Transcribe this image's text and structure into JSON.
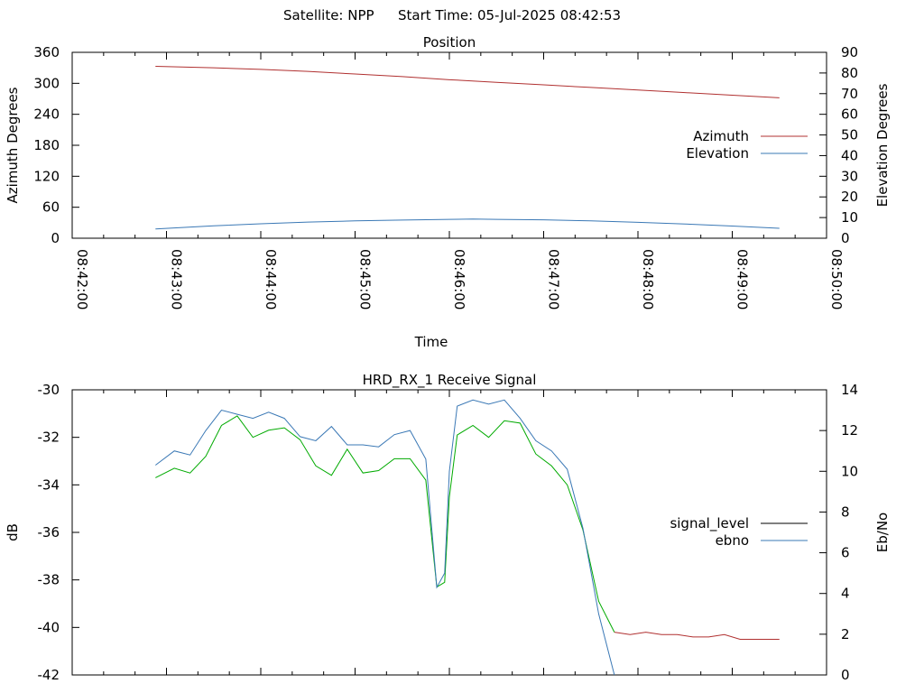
{
  "header": {
    "satellite_text": "Satellite: NPP",
    "start_time_text": "Start Time: 05-Jul-2025 08:42:53"
  },
  "chart_data": [
    {
      "type": "line",
      "title": "Position",
      "xlabel": "Time",
      "ylabel": "Azimuth Degrees",
      "y2label": "Elevation Degrees",
      "x_ticks": [
        "08:42:00",
        "08:43:00",
        "08:44:00",
        "08:45:00",
        "08:46:00",
        "08:47:00",
        "08:48:00",
        "08:49:00",
        "08:50:00"
      ],
      "xlim": [
        "08:42:00",
        "08:50:00"
      ],
      "ylim": [
        0,
        360
      ],
      "y_ticks": [
        "0",
        "60",
        "120",
        "180",
        "240",
        "300",
        "360"
      ],
      "y2lim": [
        0,
        90
      ],
      "y2_ticks": [
        "0",
        "10",
        "20",
        "30",
        "40",
        "50",
        "60",
        "70",
        "80",
        "90"
      ],
      "legend_position": "right",
      "series": [
        {
          "name": "Azimuth",
          "axis": "y",
          "color": "#b03030",
          "x": [
            "08:42:53",
            "08:43:30",
            "08:44:00",
            "08:44:30",
            "08:45:00",
            "08:45:30",
            "08:46:00",
            "08:46:30",
            "08:47:00",
            "08:47:30",
            "08:48:00",
            "08:48:30",
            "08:49:00",
            "08:49:30"
          ],
          "values": [
            333,
            330,
            327,
            323,
            318,
            313,
            307,
            302,
            297,
            292,
            287,
            282,
            277,
            272
          ]
        },
        {
          "name": "Elevation",
          "axis": "y2",
          "color": "#3a78b5",
          "x": [
            "08:42:53",
            "08:43:30",
            "08:44:00",
            "08:44:30",
            "08:45:00",
            "08:45:30",
            "08:46:00",
            "08:46:15",
            "08:46:30",
            "08:47:00",
            "08:47:30",
            "08:48:00",
            "08:48:30",
            "08:49:00",
            "08:49:30"
          ],
          "values": [
            4.5,
            6,
            7,
            7.8,
            8.4,
            8.8,
            9.1,
            9.3,
            9.1,
            8.9,
            8.4,
            7.7,
            6.9,
            5.9,
            4.8
          ]
        }
      ]
    },
    {
      "type": "line",
      "title": "HRD_RX_1 Receive Signal",
      "xlabel": "",
      "ylabel": "dB",
      "y2label": "Eb/No",
      "xlim": [
        "08:42:00",
        "08:50:00"
      ],
      "ylim": [
        -42,
        -30
      ],
      "y_ticks": [
        "-42",
        "-40",
        "-38",
        "-36",
        "-34",
        "-32",
        "-30"
      ],
      "y2lim": [
        0,
        14
      ],
      "y2_ticks": [
        "0",
        "2",
        "4",
        "6",
        "8",
        "10",
        "12",
        "14"
      ],
      "legend_position": "right",
      "series": [
        {
          "name": "signal_level",
          "axis": "y",
          "color": "#00aa00",
          "tail_color": "#b03030",
          "x": [
            "08:42:53",
            "08:43:05",
            "08:43:15",
            "08:43:25",
            "08:43:35",
            "08:43:45",
            "08:43:55",
            "08:44:05",
            "08:44:15",
            "08:44:25",
            "08:44:35",
            "08:44:45",
            "08:44:55",
            "08:45:05",
            "08:45:15",
            "08:45:25",
            "08:45:35",
            "08:45:45",
            "08:45:52",
            "08:45:57",
            "08:46:00",
            "08:46:05",
            "08:46:15",
            "08:46:25",
            "08:46:35",
            "08:46:45",
            "08:46:55",
            "08:47:05",
            "08:47:15",
            "08:47:25",
            "08:47:35",
            "08:47:45",
            "08:47:55",
            "08:48:05",
            "08:48:15",
            "08:48:25",
            "08:48:35",
            "08:48:45",
            "08:48:55",
            "08:49:05",
            "08:49:15",
            "08:49:30"
          ],
          "values": [
            -33.7,
            -33.3,
            -33.5,
            -32.8,
            -31.5,
            -31.1,
            -32.0,
            -31.7,
            -31.6,
            -32.1,
            -33.2,
            -33.6,
            -32.5,
            -33.5,
            -33.4,
            -32.9,
            -32.9,
            -33.8,
            -38.3,
            -38.1,
            -34.5,
            -31.9,
            -31.5,
            -32.0,
            -31.3,
            -31.4,
            -32.7,
            -33.2,
            -34.0,
            -35.9,
            -38.9,
            -40.2,
            -40.3,
            -40.2,
            -40.3,
            -40.3,
            -40.4,
            -40.4,
            -40.3,
            -40.5,
            -40.5,
            -40.5
          ]
        },
        {
          "name": "ebno",
          "axis": "y2",
          "color": "#3a78b5",
          "x": [
            "08:42:53",
            "08:43:05",
            "08:43:15",
            "08:43:25",
            "08:43:35",
            "08:43:45",
            "08:43:55",
            "08:44:05",
            "08:44:15",
            "08:44:25",
            "08:44:35",
            "08:44:45",
            "08:44:55",
            "08:45:05",
            "08:45:15",
            "08:45:25",
            "08:45:35",
            "08:45:45",
            "08:45:52",
            "08:45:57",
            "08:46:00",
            "08:46:05",
            "08:46:15",
            "08:46:25",
            "08:46:35",
            "08:46:45",
            "08:46:55",
            "08:47:05",
            "08:47:15",
            "08:47:25",
            "08:47:35",
            "08:47:45"
          ],
          "values": [
            10.3,
            11.0,
            10.8,
            12.0,
            13.0,
            12.8,
            12.6,
            12.9,
            12.6,
            11.7,
            11.5,
            12.2,
            11.3,
            11.3,
            11.2,
            11.8,
            12.0,
            10.6,
            4.3,
            5.0,
            10.0,
            13.2,
            13.5,
            13.3,
            13.5,
            12.6,
            11.5,
            11.0,
            10.1,
            7.2,
            3.0,
            0.0
          ]
        }
      ]
    }
  ]
}
